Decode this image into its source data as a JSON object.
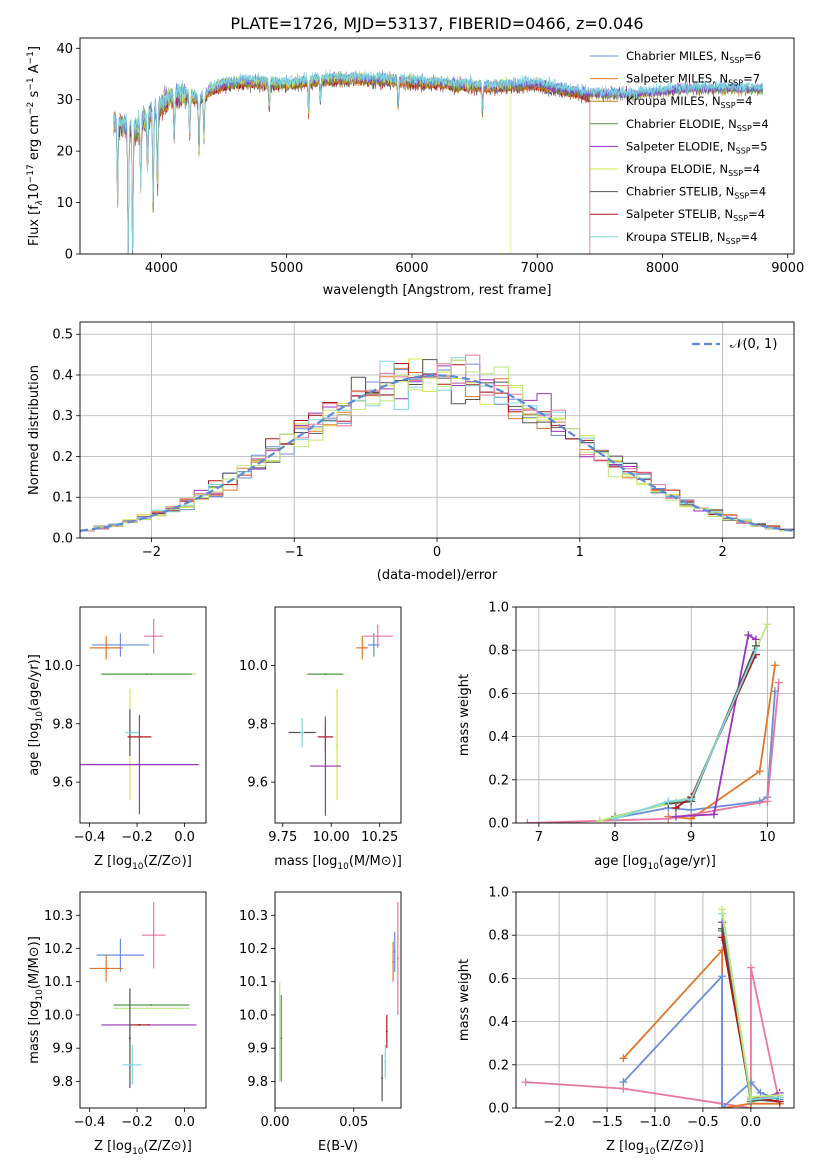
{
  "figure_title": "PLATE=1726, MJD=53137, FIBERID=0466, z=0.046",
  "colors": {
    "chabrier_miles": "#6a8fd8",
    "salpeter_miles": "#e0782a",
    "kroupa_miles": "#b08a20",
    "chabrier_elodie": "#4f9a4f",
    "salpeter_elodie": "#9a34b8",
    "kroupa_elodie": "#d4e84a",
    "chabrier_stelib": "#555555",
    "salpeter_stelib": "#b01818",
    "kroupa_stelib": "#7fd8e0",
    "pink": "#e8789e",
    "lime": "#bfe87a",
    "gauss": "#5b8ad6"
  },
  "chart_data": [
    {
      "id": "spectrum",
      "type": "line",
      "xlabel": "wavelength [Angstrom, rest frame]",
      "ylabel_parts": [
        "Flux [f",
        "λ",
        "10",
        "−17",
        " erg cm",
        "−2",
        " s",
        "−1",
        " A",
        "−1",
        "]"
      ],
      "xlim": [
        3350,
        9050
      ],
      "ylim": [
        0,
        42
      ],
      "xticks": [
        4000,
        5000,
        6000,
        7000,
        8000,
        9000
      ],
      "yticks": [
        0,
        10,
        20,
        30,
        40
      ],
      "legend_position": "top-right",
      "legend": [
        {
          "label": "Chabrier MILES, N",
          "sub": "SSP",
          "suffix": "=6",
          "color_key": "chabrier_miles"
        },
        {
          "label": "Salpeter MILES, N",
          "sub": "SSP",
          "suffix": "=7",
          "color_key": "salpeter_miles"
        },
        {
          "label": "Kroupa MILES, N",
          "sub": "SSP",
          "suffix": "=4",
          "color_key": "kroupa_miles"
        },
        {
          "label": "Chabrier ELODIE, N",
          "sub": "SSP",
          "suffix": "=4",
          "color_key": "chabrier_elodie"
        },
        {
          "label": "Salpeter ELODIE, N",
          "sub": "SSP",
          "suffix": "=5",
          "color_key": "salpeter_elodie"
        },
        {
          "label": "Kroupa ELODIE, N",
          "sub": "SSP",
          "suffix": "=4",
          "color_key": "kroupa_elodie"
        },
        {
          "label": "Chabrier STELIB, N",
          "sub": "SSP",
          "suffix": "=4",
          "color_key": "chabrier_stelib"
        },
        {
          "label": "Salpeter STELIB, N",
          "sub": "SSP",
          "suffix": "=4",
          "color_key": "salpeter_stelib"
        },
        {
          "label": "Kroupa STELIB, N",
          "sub": "SSP",
          "suffix": "=4",
          "color_key": "kroupa_stelib"
        }
      ],
      "continuum": {
        "x": [
          3620,
          3700,
          3800,
          3900,
          4000,
          4100,
          4200,
          4300,
          4400,
          4500,
          4700,
          5000,
          5300,
          5600,
          6000,
          6300,
          6600,
          7000,
          7400,
          7800,
          8200,
          8500,
          8800
        ],
        "y": [
          26,
          25,
          24,
          27,
          29,
          31,
          31,
          30,
          32,
          33,
          33.5,
          33,
          34,
          34,
          33.5,
          33,
          32.5,
          33,
          31,
          31,
          32,
          32,
          32
        ]
      },
      "absorption_lines": [
        {
          "x": 3650,
          "depth": 15
        },
        {
          "x": 3735,
          "depth": 25
        },
        {
          "x": 3770,
          "depth": 25
        },
        {
          "x": 3835,
          "depth": 12
        },
        {
          "x": 3889,
          "depth": 10
        },
        {
          "x": 3934,
          "depth": 19
        },
        {
          "x": 3969,
          "depth": 16
        },
        {
          "x": 4102,
          "depth": 8
        },
        {
          "x": 4226,
          "depth": 8
        },
        {
          "x": 4300,
          "depth": 10
        },
        {
          "x": 4340,
          "depth": 8
        },
        {
          "x": 4861,
          "depth": 5
        },
        {
          "x": 5175,
          "depth": 6
        },
        {
          "x": 5270,
          "depth": 4
        },
        {
          "x": 5890,
          "depth": 5
        },
        {
          "x": 6563,
          "depth": 5
        }
      ],
      "model_ends": [
        {
          "color_key": "kroupa_elodie",
          "x_end": 6790
        },
        {
          "color_key": "salpeter_miles",
          "x_end": 7420
        },
        {
          "color_key": "chabrier_stelib",
          "x_end": 7420
        },
        {
          "color_key": "salpeter_stelib",
          "x_end": 7420
        },
        {
          "color_key": "kroupa_miles",
          "x_end": 8800
        },
        {
          "color_key": "chabrier_elodie",
          "x_end": 8800
        },
        {
          "color_key": "salpeter_elodie",
          "x_end": 8800
        },
        {
          "color_key": "kroupa_stelib",
          "x_end": 8800
        },
        {
          "color_key": "chabrier_miles",
          "x_end": 8800
        }
      ]
    },
    {
      "id": "residuals",
      "type": "bar",
      "xlabel": "(data-model)/error",
      "ylabel": "Normed distribution",
      "xlim": [
        -2.5,
        2.5
      ],
      "ylim": [
        0,
        0.53
      ],
      "xticks": [
        -2,
        -1,
        0,
        1,
        2
      ],
      "xtick_labels": [
        "−2",
        "−1",
        "0",
        "1",
        "2"
      ],
      "yticks": [
        0.0,
        0.1,
        0.2,
        0.3,
        0.4,
        0.5
      ],
      "ytick_labels": [
        "0.0",
        "0.1",
        "0.2",
        "0.3",
        "0.4",
        "0.5"
      ],
      "grid": true,
      "legend_position": "top-right",
      "gauss_legend": "𝒩(0, 1)",
      "bin_width": 0.1,
      "series_colors": [
        "chabrier_miles",
        "salpeter_miles",
        "salpeter_elodie",
        "kroupa_elodie",
        "chabrier_stelib",
        "salpeter_stelib",
        "kroupa_stelib",
        "pink",
        "lime"
      ]
    },
    {
      "id": "age_vs_Z",
      "type": "scatter",
      "xlabel": "Z [log10(Z/Z⊙)]",
      "ylabel": "age  [log10(age/yr)]",
      "xlim": [
        -0.44,
        0.09
      ],
      "ylim": [
        9.46,
        10.2
      ],
      "xticks": [
        -0.4,
        -0.2,
        0.0
      ],
      "xtick_labels": [
        "−0.4",
        "−0.2",
        "0.0"
      ],
      "yticks": [
        9.6,
        9.8,
        10.0
      ],
      "ytick_labels": [
        "9.6",
        "9.8",
        "10.0"
      ],
      "points": [
        {
          "c": "chabrier_miles",
          "x": -0.27,
          "y": 10.07,
          "ex": 0.12,
          "ey": 0.04
        },
        {
          "c": "salpeter_miles",
          "x": -0.33,
          "y": 10.06,
          "ex": 0.07,
          "ey": 0.04
        },
        {
          "c": "pink",
          "x": -0.13,
          "y": 10.1,
          "ex": 0.04,
          "ey": 0.06
        },
        {
          "c": "lime",
          "x": -0.14,
          "y": 9.97,
          "ex": 0.19,
          "ey": 0.0
        },
        {
          "c": "chabrier_elodie",
          "x": -0.16,
          "y": 9.97,
          "ex": 0.19,
          "ey": 0.0
        },
        {
          "c": "kroupa_elodie",
          "x": -0.23,
          "y": 9.73,
          "ex": 0.0,
          "ey": 0.19
        },
        {
          "c": "chabrier_stelib",
          "x": -0.23,
          "y": 9.77,
          "ex": 0.0,
          "ey": 0.08
        },
        {
          "c": "kroupa_stelib",
          "x": -0.22,
          "y": 9.77,
          "ex": 0.03,
          "ey": 0.0
        },
        {
          "c": "salpeter_stelib",
          "x": -0.19,
          "y": 9.755,
          "ex": 0.05,
          "ey": 0.0
        },
        {
          "c": "salpeter_elodie",
          "x": -0.19,
          "y": 9.66,
          "ex": 0.25,
          "ey": 0.17
        }
      ]
    },
    {
      "id": "age_vs_mass",
      "type": "scatter",
      "xlabel": "mass [log10(M/M⊙)]",
      "xlim": [
        9.71,
        10.36
      ],
      "ylim": [
        9.46,
        10.2
      ],
      "xticks": [
        9.75,
        10.0,
        10.25
      ],
      "xtick_labels": [
        "9.75",
        "10.00",
        "10.25"
      ],
      "yticks": [
        9.6,
        9.8,
        10.0
      ],
      "ytick_labels": [
        "9.6",
        "9.8",
        "10.0"
      ],
      "points": [
        {
          "c": "chabrier_miles",
          "x": 10.22,
          "y": 10.07,
          "ex": 0.03,
          "ey": 0.04
        },
        {
          "c": "salpeter_miles",
          "x": 10.16,
          "y": 10.06,
          "ex": 0.03,
          "ey": 0.04
        },
        {
          "c": "pink",
          "x": 10.24,
          "y": 10.1,
          "ex": 0.08,
          "ey": 0.04
        },
        {
          "c": "lime",
          "x": 9.97,
          "y": 9.97,
          "ex": 0.1,
          "ey": 0.0
        },
        {
          "c": "chabrier_elodie",
          "x": 9.97,
          "y": 9.97,
          "ex": 0.09,
          "ey": 0.0
        },
        {
          "c": "kroupa_elodie",
          "x": 10.03,
          "y": 9.73,
          "ex": 0.0,
          "ey": 0.19
        },
        {
          "c": "chabrier_stelib",
          "x": 9.85,
          "y": 9.77,
          "ex": 0.07,
          "ey": 0.0
        },
        {
          "c": "kroupa_stelib",
          "x": 9.85,
          "y": 9.77,
          "ex": 0.01,
          "ey": 0.05
        },
        {
          "c": "salpeter_stelib",
          "x": 9.97,
          "y": 9.755,
          "ex": 0.04,
          "ey": 0.05
        },
        {
          "c": "salpeter_elodie",
          "x": 9.97,
          "y": 9.655,
          "ex": 0.08,
          "ey": 0.17
        }
      ]
    },
    {
      "id": "mass_weight_vs_age",
      "type": "line",
      "xlabel": "age  [log10(age/yr)]",
      "ylabel": "mass weight",
      "xlim": [
        6.7,
        10.35
      ],
      "ylim": [
        0,
        1.0
      ],
      "xticks": [
        7,
        8,
        9,
        10
      ],
      "yticks": [
        0.0,
        0.2,
        0.4,
        0.6,
        0.8,
        1.0
      ],
      "ytick_labels": [
        "0.0",
        "0.2",
        "0.4",
        "0.6",
        "0.8",
        "1.0"
      ],
      "grid": true,
      "series": [
        {
          "c": "chabrier_miles",
          "x": [
            7.8,
            8.7,
            9.0,
            9.9,
            10.0,
            10.1
          ],
          "y": [
            0.01,
            0.07,
            0.06,
            0.1,
            0.12,
            0.61
          ]
        },
        {
          "c": "salpeter_miles",
          "x": [
            8.7,
            9.0,
            9.9,
            10.1
          ],
          "y": [
            0.03,
            0.02,
            0.24,
            0.73
          ]
        },
        {
          "c": "pink",
          "x": [
            6.85,
            8.7,
            10.0,
            10.15
          ],
          "y": [
            0.0,
            0.02,
            0.1,
            0.65
          ]
        },
        {
          "c": "salpeter_elodie",
          "x": [
            8.8,
            9.3,
            9.75,
            9.85
          ],
          "y": [
            0.03,
            0.04,
            0.87,
            0.85
          ]
        },
        {
          "c": "chabrier_elodie",
          "x": [
            8.0,
            8.7,
            9.0,
            9.85
          ],
          "y": [
            0.03,
            0.09,
            0.1,
            0.82
          ]
        },
        {
          "c": "lime",
          "x": [
            7.8,
            8.8,
            9.0,
            10.0
          ],
          "y": [
            0.01,
            0.1,
            0.12,
            0.92
          ]
        },
        {
          "c": "chabrier_stelib",
          "x": [
            8.7,
            9.0,
            9.85
          ],
          "y": [
            0.09,
            0.1,
            0.82
          ]
        },
        {
          "c": "salpeter_stelib",
          "x": [
            8.8,
            9.0,
            9.85
          ],
          "y": [
            0.07,
            0.12,
            0.78
          ]
        },
        {
          "c": "kroupa_stelib",
          "x": [
            8.0,
            8.7,
            9.0,
            9.85
          ],
          "y": [
            0.02,
            0.1,
            0.11,
            0.8
          ]
        }
      ]
    },
    {
      "id": "mass_vs_Z",
      "type": "scatter",
      "xlabel": "Z [log10(Z/Z⊙)]",
      "ylabel": "mass [log10(M/M⊙)]",
      "xlim": [
        -0.44,
        0.09
      ],
      "ylim": [
        9.72,
        10.37
      ],
      "xticks": [
        -0.4,
        -0.2,
        0.0
      ],
      "xtick_labels": [
        "−0.4",
        "−0.2",
        "0.0"
      ],
      "yticks": [
        9.8,
        9.9,
        10.0,
        10.1,
        10.2,
        10.3
      ],
      "ytick_labels": [
        "9.8",
        "9.9",
        "10.0",
        "10.1",
        "10.2",
        "10.3"
      ],
      "points": [
        {
          "c": "pink",
          "x": -0.13,
          "y": 10.24,
          "ex": 0.05,
          "ey": 0.1
        },
        {
          "c": "chabrier_miles",
          "x": -0.27,
          "y": 10.18,
          "ex": 0.1,
          "ey": 0.05
        },
        {
          "c": "salpeter_miles",
          "x": -0.33,
          "y": 10.14,
          "ex": 0.07,
          "ey": 0.04
        },
        {
          "c": "chabrier_elodie",
          "x": -0.14,
          "y": 10.03,
          "ex": 0.16,
          "ey": 0.0
        },
        {
          "c": "lime",
          "x": -0.14,
          "y": 10.02,
          "ex": 0.16,
          "ey": 0.0
        },
        {
          "c": "kroupa_elodie",
          "x": -0.23,
          "y": 9.97,
          "ex": 0.0,
          "ey": 0.11
        },
        {
          "c": "salpeter_elodie",
          "x": -0.15,
          "y": 9.97,
          "ex": 0.2,
          "ey": 0.0
        },
        {
          "c": "salpeter_stelib",
          "x": -0.19,
          "y": 9.97,
          "ex": 0.04,
          "ey": 0.0
        },
        {
          "c": "chabrier_stelib",
          "x": -0.23,
          "y": 9.93,
          "ex": 0.0,
          "ey": 0.15
        },
        {
          "c": "kroupa_stelib",
          "x": -0.22,
          "y": 9.85,
          "ex": 0.04,
          "ey": 0.06
        }
      ]
    },
    {
      "id": "mass_vs_EBV",
      "type": "scatter",
      "xlabel": "E(B-V)",
      "xlim": [
        0.0,
        0.08
      ],
      "ylim": [
        9.72,
        10.37
      ],
      "xticks": [
        0.0,
        0.05
      ],
      "xtick_labels": [
        "0.00",
        "0.05"
      ],
      "yticks": [
        9.8,
        9.9,
        10.0,
        10.1,
        10.2,
        10.3
      ],
      "ytick_labels": [
        "9.8",
        "9.9",
        "10.0",
        "10.1",
        "10.2",
        "10.3"
      ],
      "points": [
        {
          "c": "lime",
          "x": 0.003,
          "y": 9.95,
          "ex": 0.0,
          "ey": 0.15
        },
        {
          "c": "chabrier_elodie",
          "x": 0.004,
          "y": 9.93,
          "ex": 0.0,
          "ey": 0.13
        },
        {
          "c": "pink",
          "x": 0.078,
          "y": 10.17,
          "ex": 0.0,
          "ey": 0.17
        },
        {
          "c": "salpeter_miles",
          "x": 0.075,
          "y": 10.16,
          "ex": 0.0,
          "ey": 0.06
        },
        {
          "c": "chabrier_miles",
          "x": 0.076,
          "y": 10.19,
          "ex": 0.0,
          "ey": 0.06
        },
        {
          "c": "salpeter_stelib",
          "x": 0.071,
          "y": 9.95,
          "ex": 0.0,
          "ey": 0.05
        },
        {
          "c": "kroupa_stelib",
          "x": 0.07,
          "y": 9.86,
          "ex": 0.0,
          "ey": 0.05
        },
        {
          "c": "chabrier_stelib",
          "x": 0.068,
          "y": 9.81,
          "ex": 0.0,
          "ey": 0.07
        }
      ]
    },
    {
      "id": "mass_weight_vs_Z",
      "type": "line",
      "xlabel": "Z [log10(Z/Z⊙)]",
      "ylabel": "mass weight",
      "xlim": [
        -2.45,
        0.45
      ],
      "ylim": [
        0,
        1.0
      ],
      "xticks": [
        -2.0,
        -1.5,
        -1.0,
        -0.5,
        0.0
      ],
      "xtick_labels": [
        "−2.0",
        "−1.5",
        "−1.0",
        "−0.5",
        "0.0"
      ],
      "yticks": [
        0.0,
        0.2,
        0.4,
        0.6,
        0.8,
        1.0
      ],
      "ytick_labels": [
        "0.0",
        "0.2",
        "0.4",
        "0.6",
        "0.8",
        "1.0"
      ],
      "grid": true,
      "series": [
        {
          "c": "pink",
          "x": [
            -2.35,
            -1.33,
            -0.3,
            0.0,
            0.0,
            0.3
          ],
          "y": [
            0.12,
            0.09,
            0.02,
            0.0,
            0.65,
            0.02
          ]
        },
        {
          "c": "salpeter_miles",
          "x": [
            -1.33,
            -0.3,
            -0.3,
            0.0,
            0.3
          ],
          "y": [
            0.23,
            0.73,
            0.0,
            0.02,
            0.02
          ]
        },
        {
          "c": "chabrier_miles",
          "x": [
            -1.33,
            -0.3,
            -0.3,
            0.0,
            0.1,
            0.3
          ],
          "y": [
            0.12,
            0.61,
            0.0,
            0.12,
            0.07,
            0.04
          ]
        },
        {
          "c": "salpeter_elodie",
          "x": [
            -0.3,
            0.0,
            0.3
          ],
          "y": [
            0.86,
            0.03,
            0.07
          ]
        },
        {
          "c": "chabrier_elodie",
          "x": [
            -0.3,
            0.0,
            0.3
          ],
          "y": [
            0.82,
            0.03,
            0.05
          ]
        },
        {
          "c": "chabrier_stelib",
          "x": [
            -0.3,
            0.0,
            0.3
          ],
          "y": [
            0.83,
            0.04,
            0.03
          ]
        },
        {
          "c": "salpeter_stelib",
          "x": [
            -0.3,
            0.0,
            0.3
          ],
          "y": [
            0.79,
            0.05,
            0.03
          ]
        },
        {
          "c": "kroupa_stelib",
          "x": [
            -0.3,
            0.0,
            0.3
          ],
          "y": [
            0.9,
            0.04,
            0.05
          ]
        },
        {
          "c": "lime",
          "x": [
            -0.3,
            0.0,
            0.3
          ],
          "y": [
            0.92,
            0.05,
            0.06
          ]
        }
      ]
    }
  ]
}
